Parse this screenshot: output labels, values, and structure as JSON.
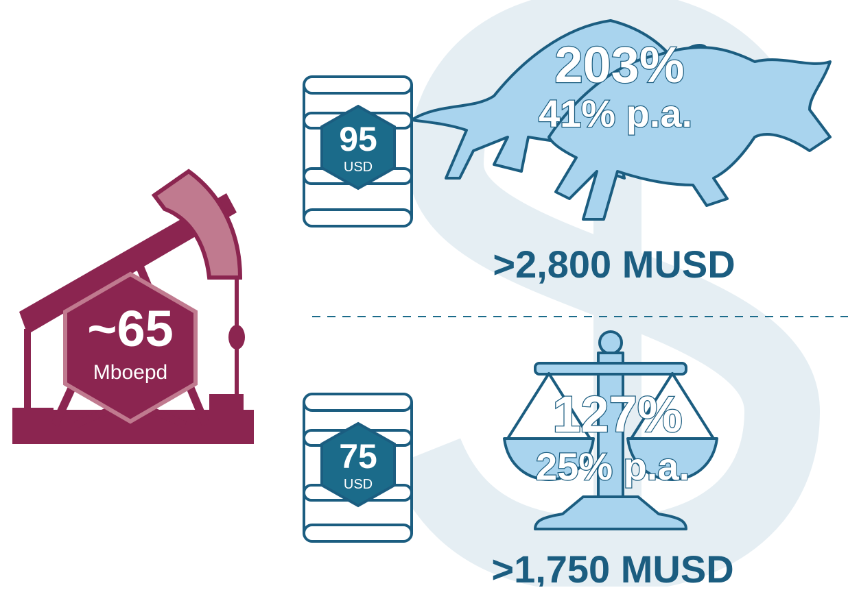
{
  "production": {
    "value": "~65",
    "unit": "Mboepd"
  },
  "scenarios": [
    {
      "price": "95",
      "unit": "USD",
      "return": "203%",
      "annual": "41% p.a.",
      "value": ">2,800 MUSD"
    },
    {
      "price": "75",
      "unit": "USD",
      "return": "127%",
      "annual": "25% p.a.",
      "value": ">1,750 MUSD"
    }
  ]
}
